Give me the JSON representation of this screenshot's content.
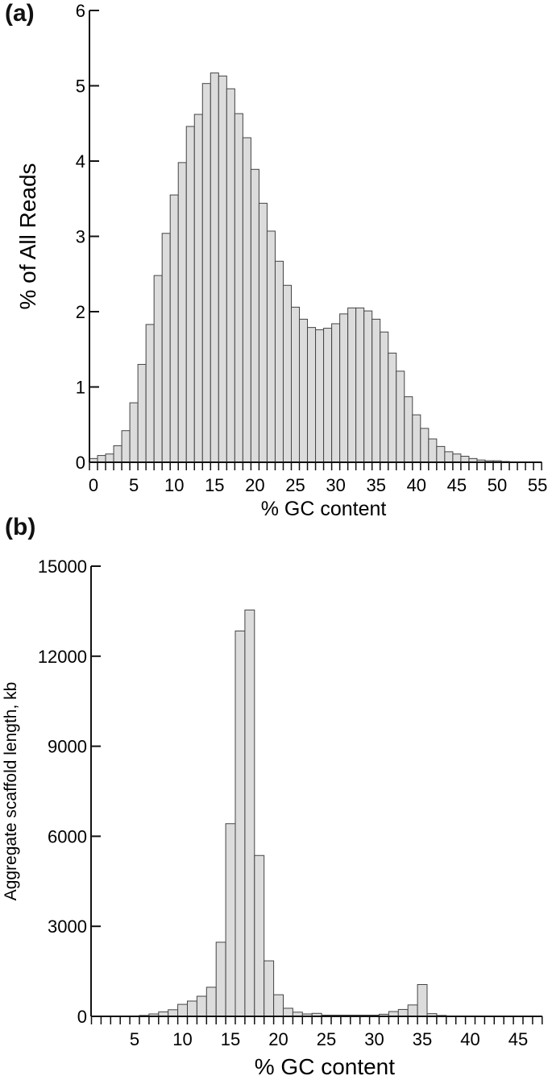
{
  "figure": {
    "panel_a_label": "(a)",
    "panel_b_label": "(b)"
  },
  "colors": {
    "bar_fill": "#dcdcdc",
    "bar_stroke": "#444444",
    "axis": "#111111"
  },
  "chart_data": [
    {
      "id": "a",
      "type": "bar",
      "title": "",
      "xlabel": "% GC content",
      "ylabel": "% of All Reads",
      "ylim": [
        0,
        6
      ],
      "yticks": [
        0,
        1,
        2,
        3,
        4,
        5,
        6
      ],
      "xticks_labels": [
        "0",
        "5",
        "10",
        "15",
        "20",
        "25",
        "30",
        "35",
        "40",
        "45",
        "50",
        "55"
      ],
      "grid": false,
      "legend": null,
      "categories": [
        0,
        1,
        2,
        3,
        4,
        5,
        6,
        7,
        8,
        9,
        10,
        11,
        12,
        13,
        14,
        15,
        16,
        17,
        18,
        19,
        20,
        21,
        22,
        23,
        24,
        25,
        26,
        27,
        28,
        29,
        30,
        31,
        32,
        33,
        34,
        35,
        36,
        37,
        38,
        39,
        40,
        41,
        42,
        43,
        44,
        45,
        46,
        47,
        48,
        49,
        50,
        51,
        52,
        53,
        54,
        55
      ],
      "values": [
        0.05,
        0.09,
        0.11,
        0.22,
        0.42,
        0.79,
        1.3,
        1.83,
        2.48,
        3.04,
        3.55,
        3.98,
        4.46,
        4.62,
        5.03,
        5.17,
        5.13,
        4.96,
        4.63,
        4.31,
        3.89,
        3.44,
        3.07,
        2.67,
        2.35,
        2.06,
        1.9,
        1.79,
        1.76,
        1.78,
        1.84,
        1.97,
        2.05,
        2.05,
        2.01,
        1.9,
        1.73,
        1.45,
        1.21,
        0.87,
        0.63,
        0.45,
        0.31,
        0.21,
        0.14,
        0.11,
        0.08,
        0.05,
        0.03,
        0.02,
        0.02,
        0.01,
        0.005,
        0.004,
        0.003,
        0.002
      ]
    },
    {
      "id": "b",
      "type": "bar",
      "title": "",
      "xlabel": "% GC content",
      "ylabel": "Aggregate scaffold length, kb",
      "ylim": [
        0,
        15000
      ],
      "yticks": [
        0,
        3000,
        6000,
        9000,
        12000,
        15000
      ],
      "xticks_labels": [
        "5",
        "10",
        "15",
        "20",
        "25",
        "30",
        "35",
        "40",
        "45"
      ],
      "grid": false,
      "legend": null,
      "categories": [
        1,
        2,
        3,
        4,
        5,
        6,
        7,
        8,
        9,
        10,
        11,
        12,
        13,
        14,
        15,
        16,
        17,
        18,
        19,
        20,
        21,
        22,
        23,
        24,
        25,
        26,
        27,
        28,
        29,
        30,
        31,
        32,
        33,
        34,
        35,
        36,
        37,
        38,
        39,
        40,
        41,
        42,
        43,
        44,
        45,
        46,
        47
      ],
      "values": [
        0,
        0,
        0,
        0,
        10,
        30,
        80,
        150,
        220,
        400,
        510,
        670,
        970,
        2470,
        6420,
        12840,
        13540,
        5360,
        1850,
        720,
        270,
        140,
        80,
        100,
        40,
        40,
        40,
        40,
        40,
        40,
        70,
        160,
        230,
        380,
        1060,
        90,
        30,
        0,
        0,
        0,
        0,
        0,
        0,
        0,
        0,
        0,
        0
      ]
    }
  ]
}
